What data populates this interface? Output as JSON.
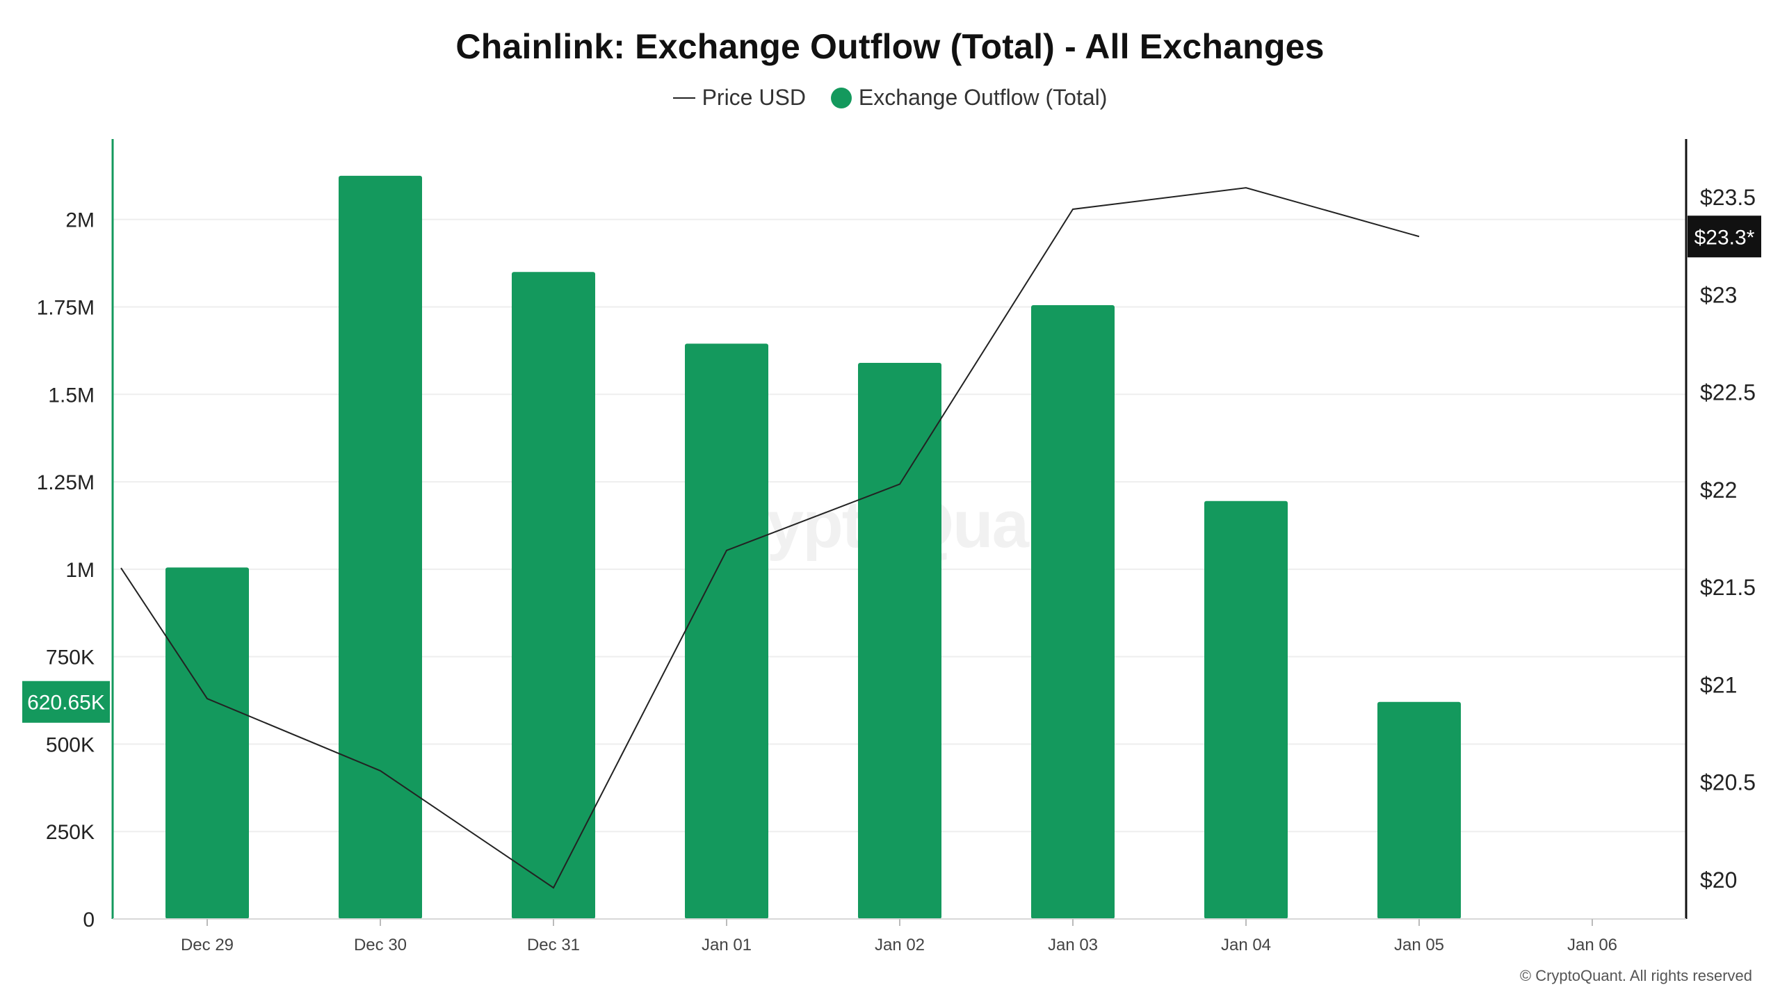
{
  "title": "Chainlink: Exchange Outflow (Total) - All Exchanges",
  "legend": {
    "price_label": "Price USD",
    "outflow_label": "Exchange Outflow (Total)"
  },
  "watermark": "CryptoQuant",
  "copyright": "© CryptoQuant. All rights reserved",
  "colors": {
    "bar": "#14995d",
    "price_line": "#222222",
    "left_axis": "#14995d",
    "right_axis": "#111111",
    "grid": "#eeeeee"
  },
  "chart_data": {
    "type": "bar",
    "categories": [
      "Dec 29",
      "Dec 30",
      "Dec 31",
      "Jan 01",
      "Jan 02",
      "Jan 03",
      "Jan 04",
      "Jan 05",
      "Jan 06"
    ],
    "series": [
      {
        "name": "Exchange Outflow (Total)",
        "type": "bar",
        "axis": "left",
        "values": [
          1005000,
          2125000,
          1850000,
          1645000,
          1590000,
          1755000,
          1195000,
          620650,
          null
        ]
      },
      {
        "name": "Price USD",
        "type": "line",
        "axis": "right",
        "values": [
          20.93,
          20.56,
          19.96,
          21.69,
          22.03,
          23.44,
          23.55,
          23.3,
          null
        ],
        "start_value": 21.6
      }
    ],
    "left_axis": {
      "ylim": [
        0,
        2230000
      ],
      "ticks": [
        0,
        250000,
        500000,
        750000,
        1000000,
        1250000,
        1500000,
        1750000,
        2000000
      ],
      "tick_labels": [
        "0",
        "250K",
        "500K",
        "750K",
        "1M",
        "1.25M",
        "1.5M",
        "1.75M",
        "2M"
      ],
      "current_label": "620.65K",
      "current_value": 620650
    },
    "right_axis": {
      "ylim": [
        19.8,
        23.8
      ],
      "ticks": [
        20,
        20.5,
        21,
        21.5,
        22,
        22.5,
        23,
        23.5
      ],
      "tick_labels": [
        "$20",
        "$20.5",
        "$21",
        "$21.5",
        "$22",
        "$22.5",
        "$23",
        "$23.5"
      ],
      "current_label": "$23.3*",
      "current_value": 23.3
    },
    "grid": true,
    "legend_position": "top-center"
  }
}
